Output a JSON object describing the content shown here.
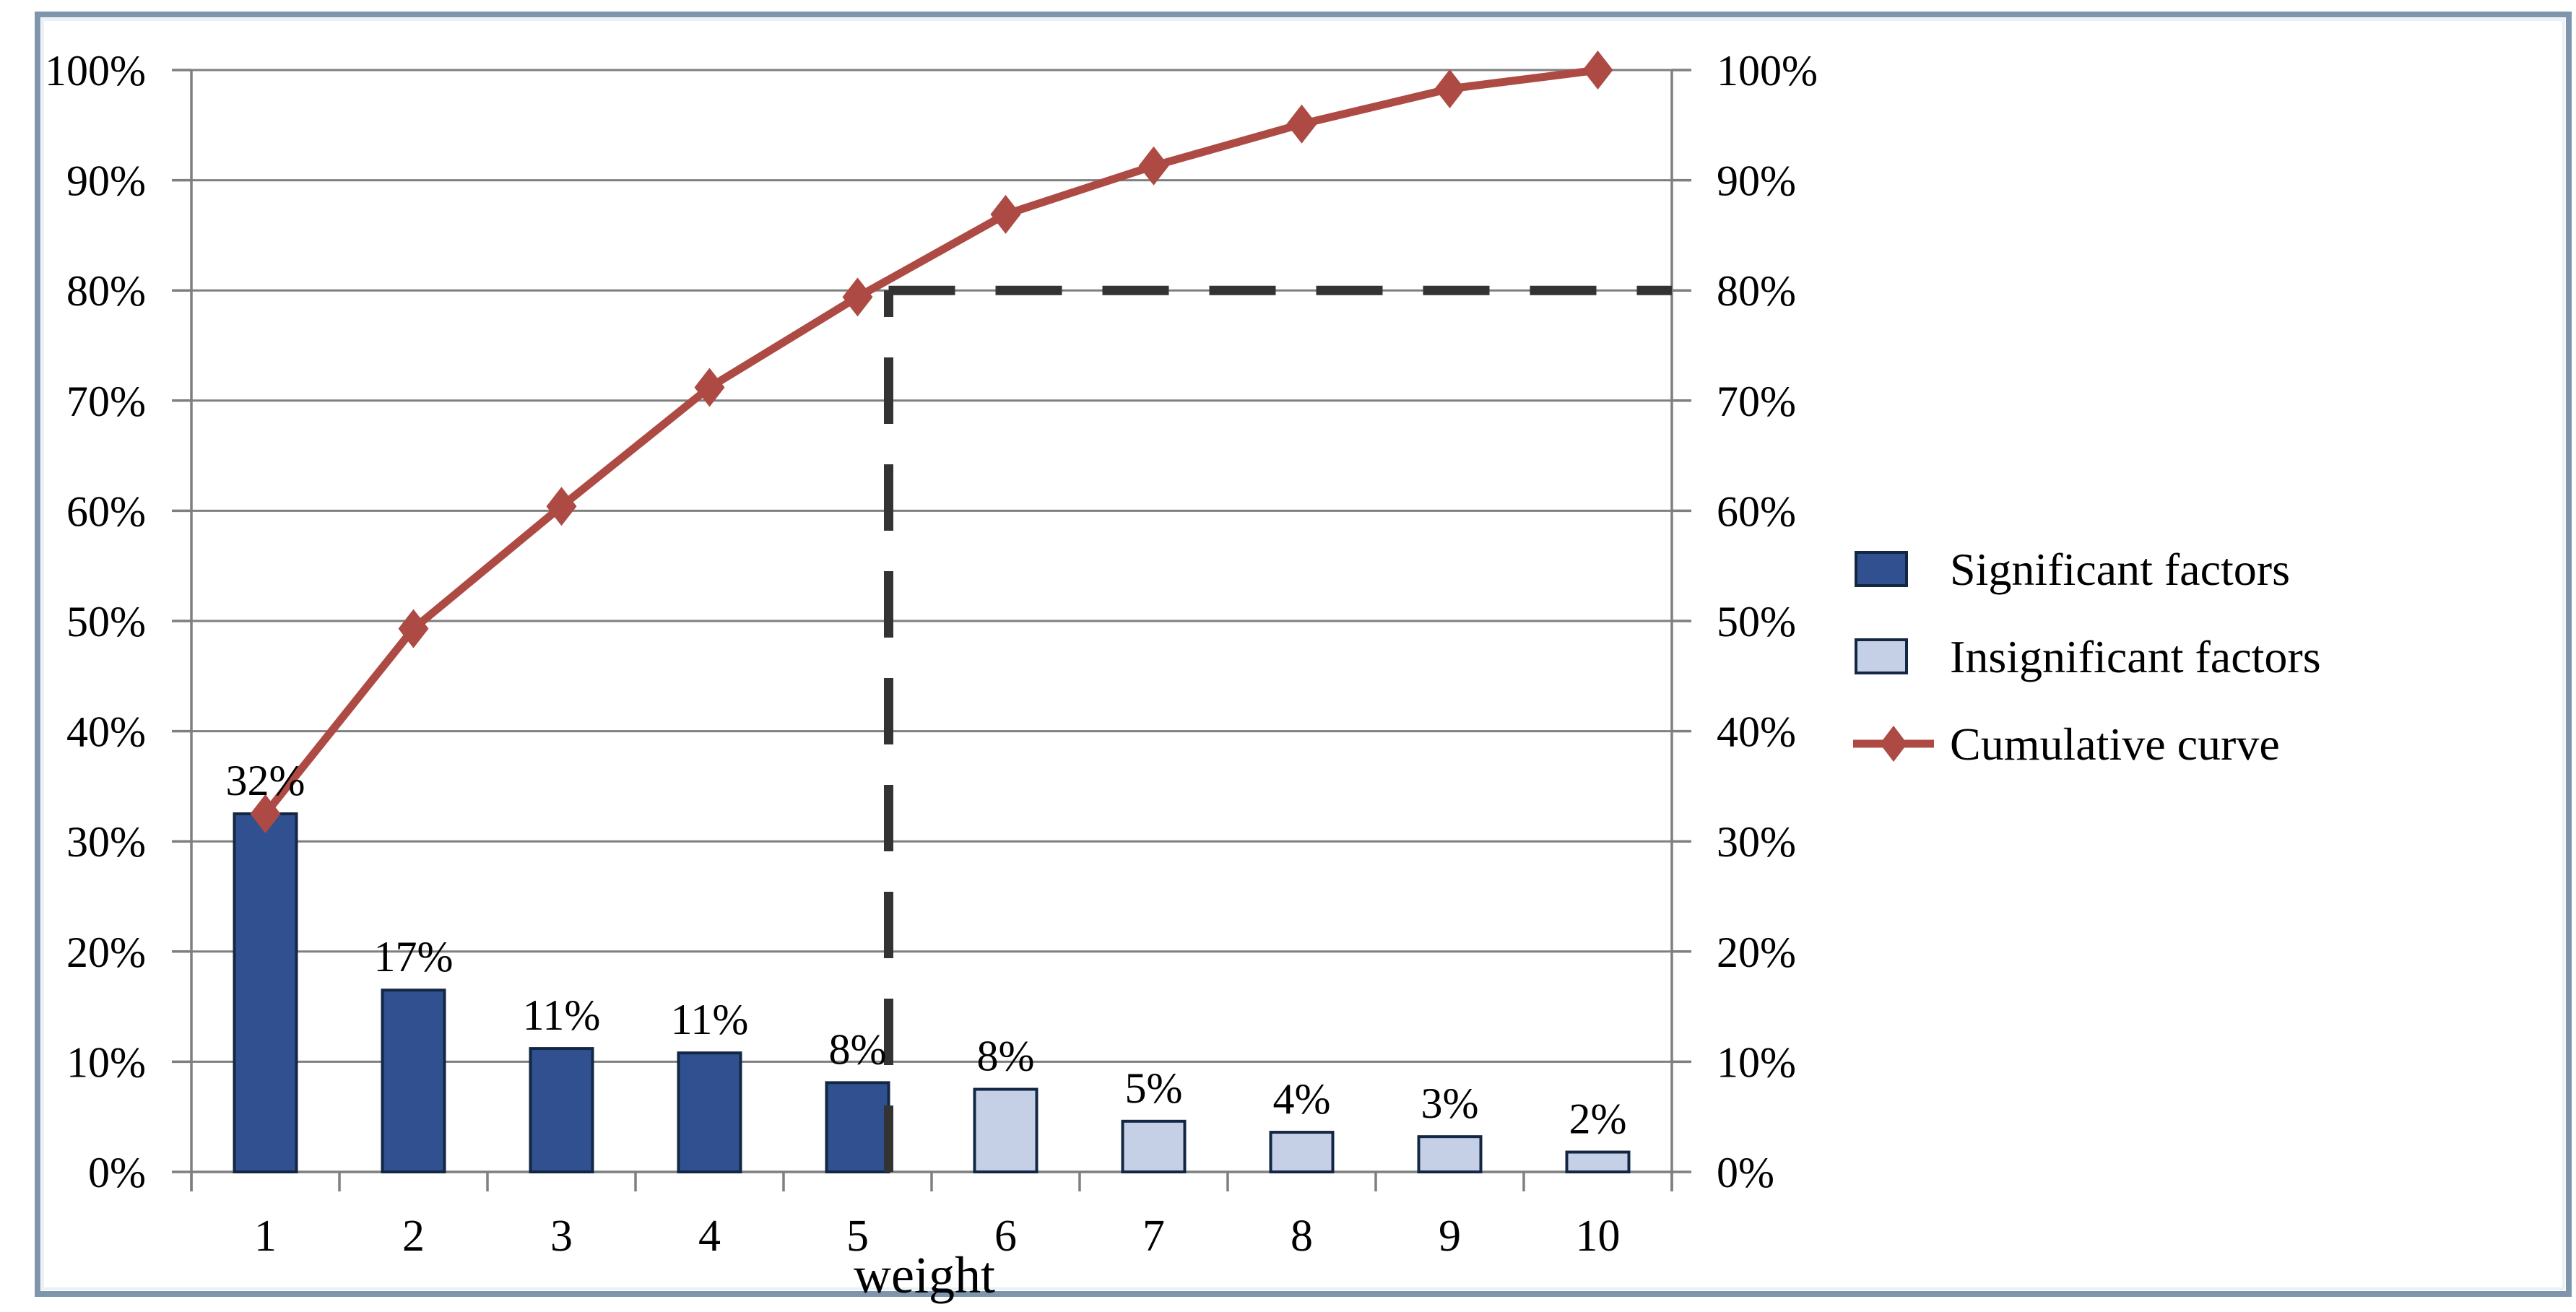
{
  "figure": {
    "border_color": "#7E95AC",
    "inner_edge_color": "#EAF1F7",
    "background": "#FFFFFF"
  },
  "chart_data": {
    "type": "pareto (bar + cumulative line)",
    "title": "",
    "xlabel": "weight",
    "categories": [
      "1",
      "2",
      "3",
      "4",
      "5",
      "6",
      "7",
      "8",
      "9",
      "10"
    ],
    "bars": {
      "labels": [
        "32%",
        "17%",
        "11%",
        "11%",
        "8%",
        "8%",
        "5%",
        "4%",
        "3%",
        "2%"
      ],
      "values": [
        32.5,
        16.5,
        11.2,
        10.8,
        8.1,
        7.5,
        4.6,
        3.6,
        3.2,
        1.8
      ],
      "significant_count": 5,
      "significant_color": "#31508F",
      "insignificant_color": "#C5D0E6",
      "outline_color": "#132744"
    },
    "line": {
      "name": "Cumulative curve",
      "values": [
        32.5,
        49.3,
        60.4,
        71.2,
        79.4,
        86.9,
        91.3,
        95.1,
        98.3,
        100
      ],
      "color": "#AE4A44",
      "marker": "diamond"
    },
    "threshold": {
      "percent": 80,
      "after_category": 5,
      "line_color": "#333333",
      "style": "dashed"
    },
    "y_axis": {
      "min": 0,
      "max": 100,
      "left_ticks": [
        "0%",
        "10%",
        "20%",
        "30%",
        "40%",
        "50%",
        "60%",
        "70%",
        "80%",
        "90%",
        "100%"
      ],
      "right_ticks": [
        "0%",
        "10%",
        "20%",
        "30%",
        "40%",
        "50%",
        "60%",
        "70%",
        "80%",
        "90%",
        "100%"
      ],
      "grid_color": "#7F7F7F"
    },
    "legend": {
      "position": "right",
      "entries": [
        {
          "label": "Significant factors",
          "swatch": "bar",
          "color": "#31508F"
        },
        {
          "label": "Insignificant factors",
          "swatch": "bar",
          "color": "#C5D0E6"
        },
        {
          "label": "Cumulative curve",
          "swatch": "line",
          "color": "#AE4A44"
        }
      ]
    }
  }
}
